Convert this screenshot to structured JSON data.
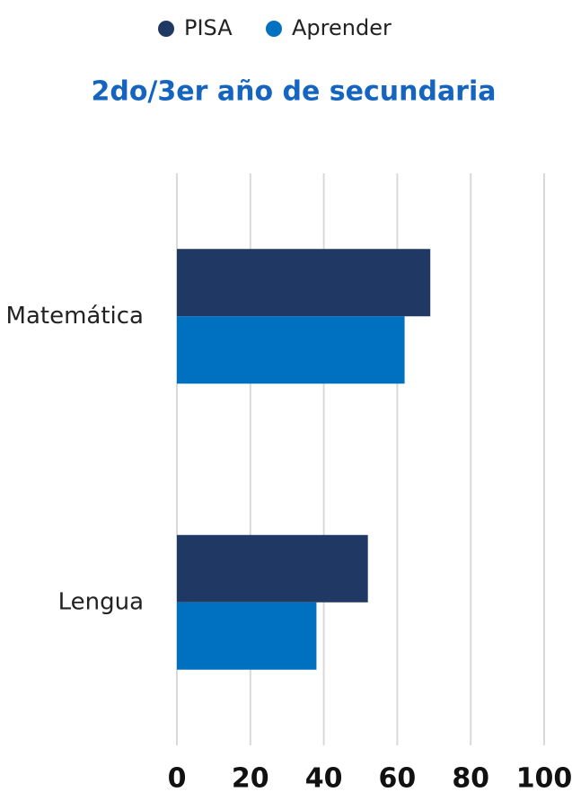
{
  "chart_data": {
    "type": "hbar",
    "title": "2do/3er año de secundaria",
    "categories": [
      "Matemática",
      "Lengua"
    ],
    "series": [
      {
        "name": "PISA",
        "color": "#203864",
        "values": [
          69,
          52
        ]
      },
      {
        "name": "Aprender",
        "color": "#0070c0",
        "values": [
          62,
          38
        ]
      }
    ],
    "xlim": [
      0,
      100
    ],
    "xticks": [
      0,
      20,
      40,
      60,
      80,
      100
    ],
    "grid": true,
    "legend": "top"
  }
}
